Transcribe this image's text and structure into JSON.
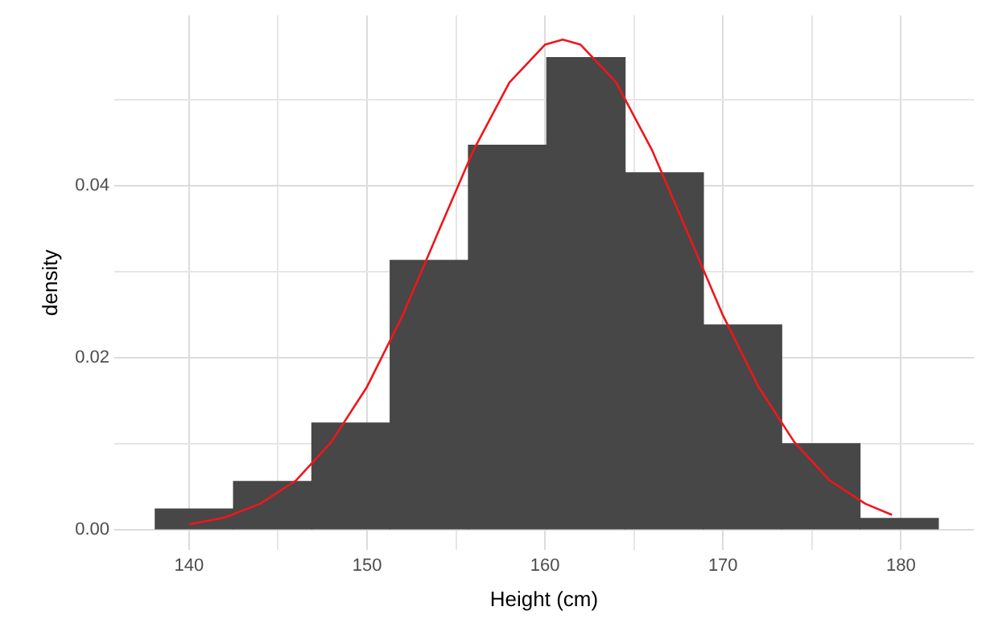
{
  "chart_data": {
    "type": "histogram",
    "xlabel": "Height (cm)",
    "ylabel": "density",
    "bins": [
      138.1,
      142.5,
      146.9,
      151.3,
      155.7,
      160.1,
      164.5,
      168.9,
      173.3,
      177.7,
      182.1
    ],
    "values": [
      0.0024,
      0.0056,
      0.0124,
      0.0313,
      0.0447,
      0.0549,
      0.0415,
      0.0238,
      0.01,
      0.0013
    ],
    "color": "#474747",
    "series": [
      {
        "type": "line",
        "color": "#f0161b",
        "marker": "none",
        "x": [
          140,
          142,
          144,
          146,
          148,
          150,
          152,
          154,
          156,
          158,
          160,
          161,
          162,
          164,
          166,
          168,
          170,
          172,
          174,
          176,
          178,
          179.5
        ],
        "values": [
          0.0006,
          0.0014,
          0.003,
          0.0057,
          0.0102,
          0.0166,
          0.0249,
          0.0346,
          0.0442,
          0.052,
          0.0564,
          0.057,
          0.0564,
          0.052,
          0.0442,
          0.0346,
          0.0249,
          0.0166,
          0.0102,
          0.0057,
          0.003,
          0.0017
        ]
      }
    ],
    "xlim": [
      135.8,
      184.1
    ],
    "xticks": [
      140,
      {
        "value": 145,
        "label": null
      },
      150,
      {
        "value": 155,
        "label": null
      },
      160,
      {
        "value": 165,
        "label": null
      },
      170,
      {
        "value": 175,
        "label": null
      },
      180
    ],
    "ylim": [
      -0.0024,
      0.0598
    ],
    "yticks": [
      {
        "value": 0,
        "label": "0.00"
      },
      {
        "value": 0.01,
        "label": null
      },
      {
        "value": 0.02,
        "label": "0.02"
      },
      {
        "value": 0.03,
        "label": null
      },
      {
        "value": 0.04,
        "label": "0.04"
      },
      {
        "value": 0.05,
        "label": null
      }
    ],
    "grid": true
  }
}
